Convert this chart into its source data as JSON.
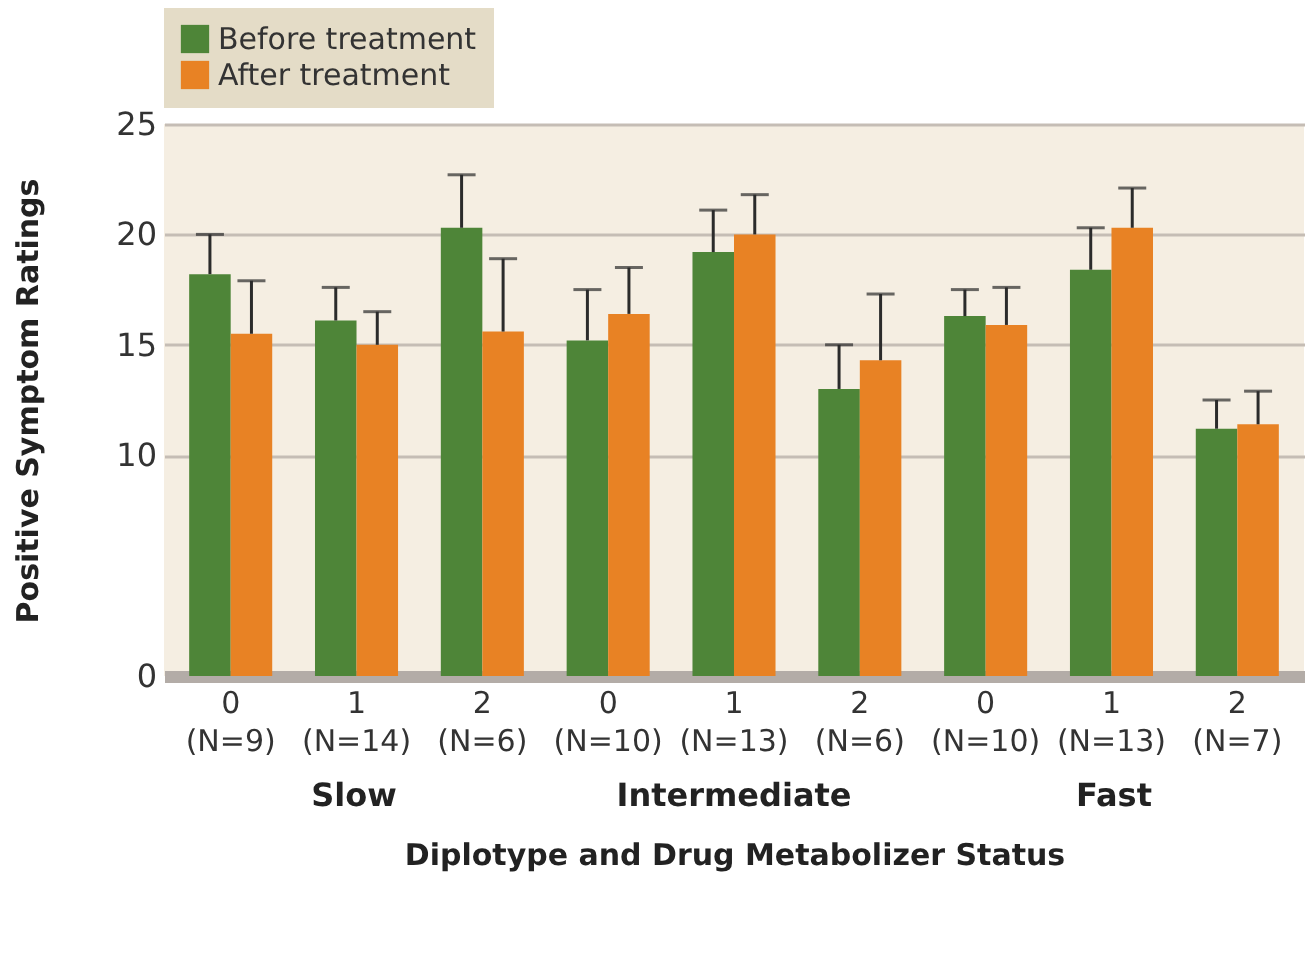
{
  "chart_data": {
    "type": "bar",
    "xlabel": "Diplotype and Drug Metabolizer Status",
    "ylabel": "Positive Symptom Ratings",
    "categories": [
      "0\n(N=9)",
      "1\n(N=14)",
      "2\n(N=6)",
      "0\n(N=10)",
      "1\n(N=13)",
      "2\n(N=6)",
      "0\n(N=10)",
      "1\n(N=13)",
      "2\n(N=7)"
    ],
    "series": [
      {
        "name": "Before treatment",
        "color": "#4e8538",
        "values": [
          18.2,
          16.1,
          20.3,
          15.2,
          19.2,
          13.0,
          16.3,
          18.4,
          11.2
        ],
        "errors": [
          [
            18.2,
            20.0
          ],
          [
            16.1,
            17.6
          ],
          [
            20.3,
            22.7
          ],
          [
            15.2,
            17.5
          ],
          [
            19.2,
            21.1
          ],
          [
            13.0,
            15.0
          ],
          [
            16.3,
            17.5
          ],
          [
            18.4,
            20.3
          ],
          [
            11.2,
            12.5
          ]
        ]
      },
      {
        "name": "After treatment",
        "color": "#e88224",
        "values": [
          15.5,
          15.0,
          15.6,
          16.4,
          20.0,
          14.3,
          15.9,
          20.3,
          11.4
        ],
        "errors": [
          [
            15.5,
            17.9
          ],
          [
            15.0,
            16.5
          ],
          [
            15.6,
            18.9
          ],
          [
            16.4,
            18.5
          ],
          [
            20.0,
            21.8
          ],
          [
            14.3,
            17.3
          ],
          [
            15.9,
            17.6
          ],
          [
            20.3,
            22.1
          ],
          [
            11.4,
            12.9
          ]
        ]
      }
    ],
    "annotations": [
      "Slow",
      "Intermediate",
      "Fast"
    ],
    "ylim": [
      0,
      25
    ],
    "yticks": [
      0,
      10,
      15,
      20,
      25
    ],
    "grid": "y",
    "legend": "top"
  }
}
